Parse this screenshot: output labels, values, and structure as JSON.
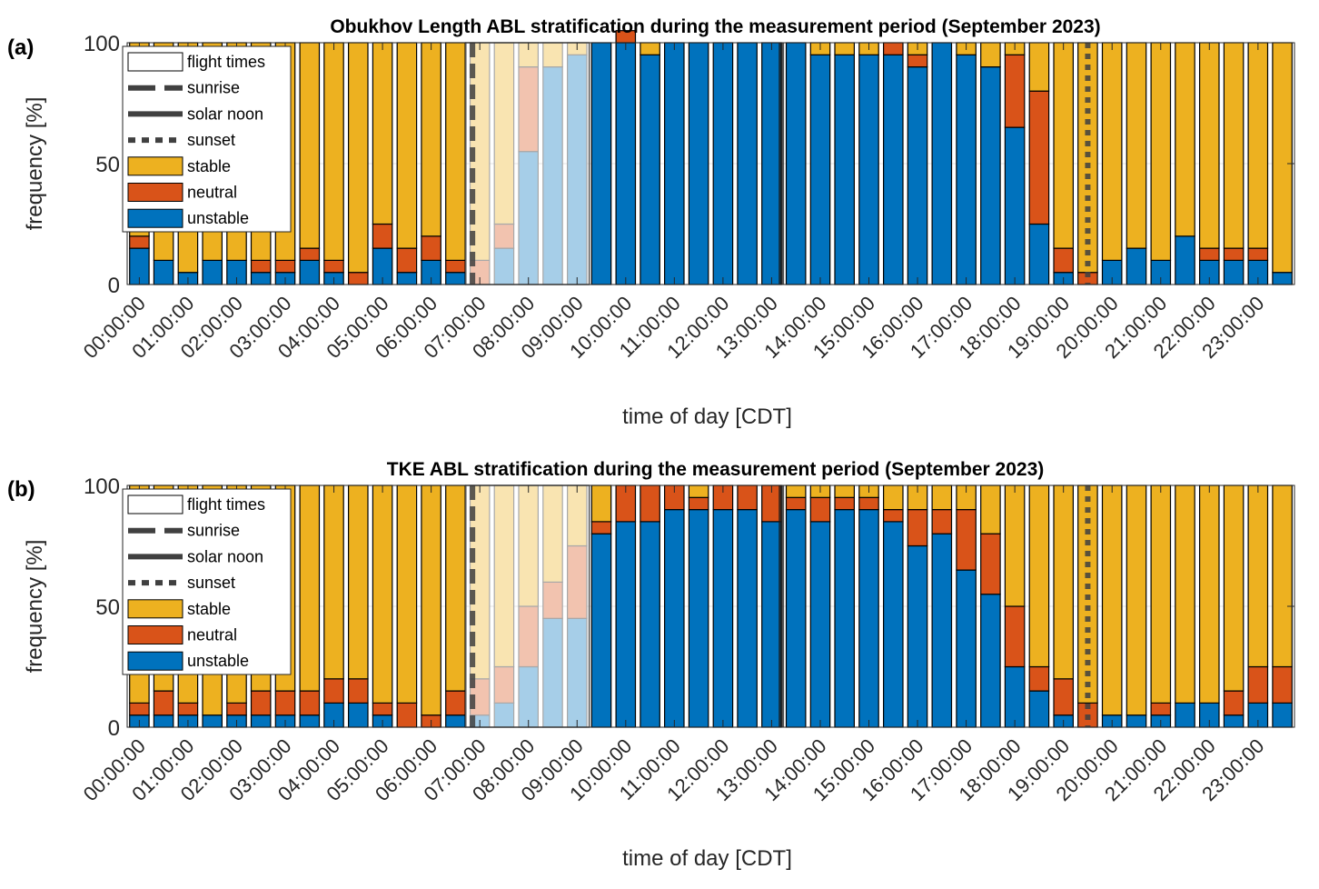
{
  "figure": {
    "colors": {
      "stable": "#EDB120",
      "neutral": "#D95319",
      "unstable": "#0072BD",
      "sunline": "#404040"
    }
  },
  "chart_data": [
    {
      "type": "bar",
      "stacked": true,
      "panel_label": "(a)",
      "title": "Obukhov Length ABL stratification during the measurement period (September 2023)",
      "xlabel": "time of day [CDT]",
      "ylabel": "frequency [%]",
      "ylim": [
        0,
        100
      ],
      "yticks": [
        "0",
        "50",
        "100"
      ],
      "grid": "y-major",
      "legend_position": "top-left",
      "legend": [
        "flight times",
        "sunrise",
        "solar noon",
        "sunset",
        "stable",
        "neutral",
        "unstable"
      ],
      "xtick_labels": [
        "00:00:00",
        "01:00:00",
        "02:00:00",
        "03:00:00",
        "04:00:00",
        "05:00:00",
        "06:00:00",
        "07:00:00",
        "08:00:00",
        "09:00:00",
        "10:00:00",
        "11:00:00",
        "12:00:00",
        "13:00:00",
        "14:00:00",
        "15:00:00",
        "16:00:00",
        "17:00:00",
        "18:00:00",
        "19:00:00",
        "20:00:00",
        "21:00:00",
        "22:00:00",
        "23:00:00"
      ],
      "bin_minutes": 30,
      "flight_times_hours": [
        7.0,
        9.5
      ],
      "sunrise_hour": 7.1,
      "solar_noon_hour": 13.45,
      "sunset_hour": 19.75,
      "series": [
        {
          "name": "unstable",
          "values": [
            15,
            10,
            5,
            10,
            10,
            5,
            5,
            10,
            5,
            0,
            15,
            5,
            10,
            5,
            0,
            15,
            55,
            90,
            95,
            100,
            100,
            95,
            100,
            100,
            100,
            100,
            100,
            100,
            95,
            95,
            95,
            95,
            90,
            100,
            95,
            90,
            65,
            25,
            5,
            0,
            10,
            15,
            10,
            20,
            10,
            10,
            10,
            5
          ]
        },
        {
          "name": "neutral",
          "values": [
            5,
            0,
            0,
            0,
            0,
            5,
            5,
            5,
            5,
            5,
            10,
            10,
            10,
            5,
            10,
            10,
            35,
            0,
            0,
            0,
            5,
            0,
            0,
            0,
            0,
            0,
            0,
            0,
            0,
            0,
            0,
            5,
            5,
            0,
            0,
            0,
            30,
            55,
            10,
            5,
            0,
            0,
            0,
            0,
            5,
            5,
            5,
            0
          ]
        },
        {
          "name": "stable",
          "values": [
            80,
            90,
            95,
            90,
            90,
            90,
            90,
            85,
            90,
            95,
            75,
            85,
            80,
            90,
            90,
            75,
            10,
            10,
            5,
            0,
            0,
            5,
            0,
            0,
            0,
            0,
            0,
            0,
            5,
            5,
            5,
            0,
            5,
            0,
            5,
            10,
            5,
            20,
            85,
            95,
            90,
            85,
            90,
            80,
            85,
            85,
            85,
            95
          ]
        }
      ]
    },
    {
      "type": "bar",
      "stacked": true,
      "panel_label": "(b)",
      "title": "TKE ABL stratification during the measurement period (September 2023)",
      "xlabel": "time of day [CDT]",
      "ylabel": "frequency [%]",
      "ylim": [
        0,
        100
      ],
      "yticks": [
        "0",
        "50",
        "100"
      ],
      "grid": "y-major",
      "legend_position": "top-left",
      "legend": [
        "flight times",
        "sunrise",
        "solar noon",
        "sunset",
        "stable",
        "neutral",
        "unstable"
      ],
      "xtick_labels": [
        "00:00:00",
        "01:00:00",
        "02:00:00",
        "03:00:00",
        "04:00:00",
        "05:00:00",
        "06:00:00",
        "07:00:00",
        "08:00:00",
        "09:00:00",
        "10:00:00",
        "11:00:00",
        "12:00:00",
        "13:00:00",
        "14:00:00",
        "15:00:00",
        "16:00:00",
        "17:00:00",
        "18:00:00",
        "19:00:00",
        "20:00:00",
        "21:00:00",
        "22:00:00",
        "23:00:00"
      ],
      "bin_minutes": 30,
      "flight_times_hours": [
        7.0,
        9.5
      ],
      "sunrise_hour": 7.1,
      "solar_noon_hour": 13.45,
      "sunset_hour": 19.75,
      "series": [
        {
          "name": "unstable",
          "values": [
            5,
            5,
            5,
            5,
            5,
            5,
            5,
            5,
            10,
            10,
            5,
            0,
            0,
            5,
            5,
            10,
            25,
            45,
            45,
            80,
            85,
            85,
            90,
            90,
            90,
            90,
            85,
            90,
            85,
            90,
            90,
            85,
            75,
            80,
            65,
            55,
            25,
            15,
            5,
            0,
            5,
            5,
            5,
            10,
            10,
            5,
            10,
            10
          ]
        },
        {
          "name": "neutral",
          "values": [
            5,
            10,
            5,
            0,
            5,
            10,
            10,
            10,
            10,
            10,
            5,
            10,
            5,
            10,
            15,
            15,
            25,
            15,
            30,
            5,
            15,
            15,
            10,
            5,
            10,
            10,
            15,
            5,
            10,
            5,
            5,
            5,
            15,
            10,
            25,
            25,
            25,
            10,
            15,
            10,
            0,
            0,
            5,
            0,
            0,
            10,
            15,
            15
          ]
        },
        {
          "name": "stable",
          "values": [
            90,
            85,
            90,
            95,
            90,
            85,
            85,
            85,
            80,
            80,
            90,
            90,
            95,
            85,
            80,
            75,
            50,
            40,
            25,
            15,
            0,
            0,
            0,
            5,
            0,
            0,
            0,
            5,
            5,
            5,
            5,
            10,
            10,
            10,
            10,
            20,
            50,
            75,
            80,
            90,
            95,
            95,
            90,
            90,
            90,
            85,
            75,
            75
          ]
        }
      ]
    }
  ]
}
